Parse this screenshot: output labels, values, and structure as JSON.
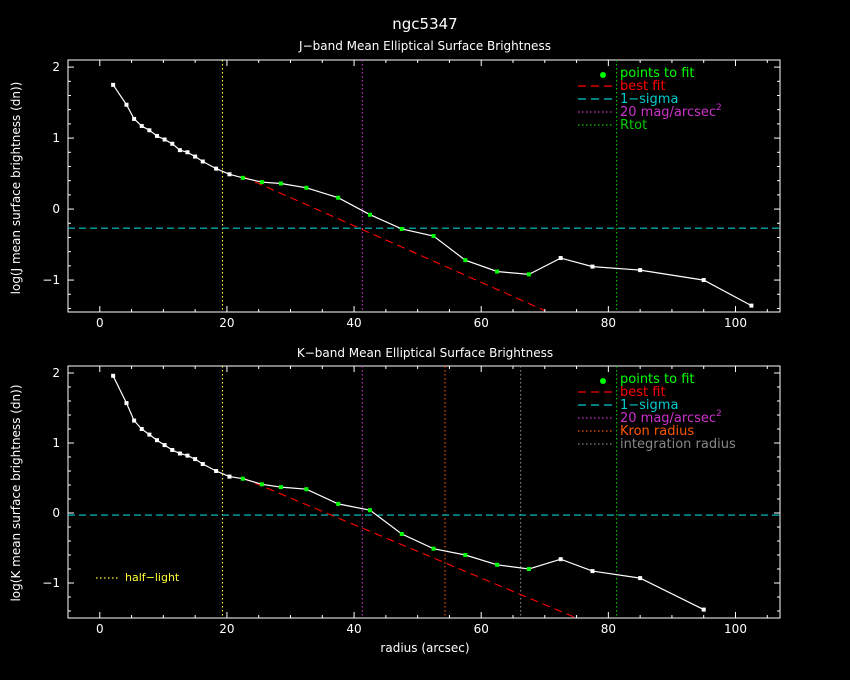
{
  "figure_title": "ngc5347",
  "xlabel": "radius (arcsec)",
  "colors": {
    "background": "#000000",
    "axes": "#ffffff",
    "data": "#ffffff",
    "fit_points": "#00ff00",
    "best_fit": "#ff0000",
    "sigma": "#00cccc",
    "mag20": "#cc33cc",
    "rtot": "#00cc00",
    "kron": "#ff5500",
    "integration": "#888888",
    "half_light": "#ffff33"
  },
  "chart_data": [
    {
      "type": "line",
      "title": "J−band Mean Elliptical Surface Brightness",
      "ylabel": "log(J mean surface brightness (dn))",
      "xlim": [
        -5,
        107
      ],
      "ylim": [
        -1.45,
        2.1
      ],
      "xticks": [
        "0",
        "20",
        "40",
        "60",
        "80",
        "100"
      ],
      "xtick_values": [
        0,
        20,
        40,
        60,
        80,
        100
      ],
      "yticks": [
        "−1",
        "0",
        "1",
        "2"
      ],
      "ytick_values": [
        -1,
        0,
        1,
        2
      ],
      "profile": {
        "x": [
          2.1,
          4.2,
          5.4,
          6.6,
          7.8,
          9.0,
          10.2,
          11.4,
          12.6,
          13.8,
          15.0,
          16.2,
          18.3,
          20.4,
          22.5,
          25.5,
          28.5,
          32.5,
          37.5,
          42.5,
          47.5,
          52.5,
          57.5,
          62.5,
          67.5,
          72.5,
          77.5,
          85.0,
          95.0,
          102.5
        ],
        "y": [
          1.75,
          1.47,
          1.27,
          1.17,
          1.11,
          1.03,
          0.98,
          0.92,
          0.83,
          0.8,
          0.74,
          0.67,
          0.57,
          0.49,
          0.44,
          0.38,
          0.36,
          0.3,
          0.16,
          -0.08,
          -0.28,
          -0.38,
          -0.72,
          -0.88,
          -0.92,
          -0.69,
          -0.81,
          -0.86,
          -1.0,
          -1.36
        ]
      },
      "fit_points_x": [
        22.5,
        25.5,
        28.5,
        32.5,
        37.5,
        42.5,
        47.5,
        52.5,
        57.5,
        62.5,
        67.5
      ],
      "best_fit": {
        "x": [
          22.5,
          70.0
        ],
        "y": [
          0.46,
          -1.43
        ]
      },
      "sigma_level": -0.27,
      "vlines": [
        {
          "name": "half-light",
          "x": 19.3,
          "color_key": "half_light"
        },
        {
          "name": "20 mag",
          "x": 41.3,
          "color_key": "mag20"
        },
        {
          "name": "Rtot",
          "x": 81.3,
          "color_key": "rtot"
        }
      ],
      "legend": [
        {
          "label": "points to fit",
          "kind": "dot",
          "color_key": "fit_points"
        },
        {
          "label": "best fit",
          "kind": "dash",
          "color_key": "best_fit"
        },
        {
          "label": "1−sigma",
          "kind": "dash",
          "color_key": "sigma"
        },
        {
          "label": "20 mag/arcsec",
          "sup": "2",
          "kind": "dot-line",
          "color_key": "mag20"
        },
        {
          "label": "Rtot",
          "kind": "dot-line",
          "color_key": "rtot"
        }
      ]
    },
    {
      "type": "line",
      "title": "K−band Mean Elliptical Surface Brightness",
      "ylabel": "log(K mean surface brightness (dn))",
      "xlim": [
        -5,
        107
      ],
      "ylim": [
        -1.5,
        2.1
      ],
      "xticks": [
        "0",
        "20",
        "40",
        "60",
        "80",
        "100"
      ],
      "xtick_values": [
        0,
        20,
        40,
        60,
        80,
        100
      ],
      "yticks": [
        "−1",
        "0",
        "1",
        "2"
      ],
      "ytick_values": [
        -1,
        0,
        1,
        2
      ],
      "profile": {
        "x": [
          2.1,
          4.2,
          5.4,
          6.6,
          7.8,
          9.0,
          10.2,
          11.4,
          12.6,
          13.8,
          15.0,
          16.2,
          18.3,
          20.4,
          22.5,
          25.5,
          28.5,
          32.5,
          37.5,
          42.5,
          47.5,
          52.5,
          57.5,
          62.5,
          67.5,
          72.5,
          77.5,
          85.0,
          95.0
        ],
        "y": [
          1.96,
          1.57,
          1.32,
          1.2,
          1.12,
          1.04,
          0.97,
          0.9,
          0.85,
          0.82,
          0.77,
          0.7,
          0.6,
          0.52,
          0.49,
          0.41,
          0.37,
          0.34,
          0.13,
          0.04,
          -0.3,
          -0.51,
          -0.6,
          -0.74,
          -0.8,
          -0.66,
          -0.83,
          -0.93,
          -1.38
        ]
      },
      "fit_points_x": [
        22.5,
        25.5,
        28.5,
        32.5,
        37.5,
        42.5,
        47.5,
        52.5,
        57.5,
        62.5,
        67.5
      ],
      "best_fit": {
        "x": [
          22.5,
          75.0
        ],
        "y": [
          0.5,
          -1.5
        ]
      },
      "sigma_level": -0.03,
      "vlines": [
        {
          "name": "half-light",
          "x": 19.3,
          "color_key": "half_light"
        },
        {
          "name": "20 mag",
          "x": 41.3,
          "color_key": "mag20"
        },
        {
          "name": "Kron radius",
          "x": 54.3,
          "color_key": "kron"
        },
        {
          "name": "integration radius",
          "x": 66.2,
          "color_key": "integration"
        },
        {
          "name": "Rtot",
          "x": 81.3,
          "color_key": "rtot"
        }
      ],
      "legend": [
        {
          "label": "points to fit",
          "kind": "dot",
          "color_key": "fit_points"
        },
        {
          "label": "best fit",
          "kind": "dash",
          "color_key": "best_fit"
        },
        {
          "label": "1−sigma",
          "kind": "dash",
          "color_key": "sigma"
        },
        {
          "label": "20 mag/arcsec",
          "sup": "2",
          "kind": "dot-line",
          "color_key": "mag20"
        },
        {
          "label": "Kron radius",
          "kind": "dot-line",
          "color_key": "kron"
        },
        {
          "label": "integration radius",
          "kind": "dot-line",
          "color_key": "integration"
        }
      ],
      "annotation": "half−light"
    }
  ]
}
